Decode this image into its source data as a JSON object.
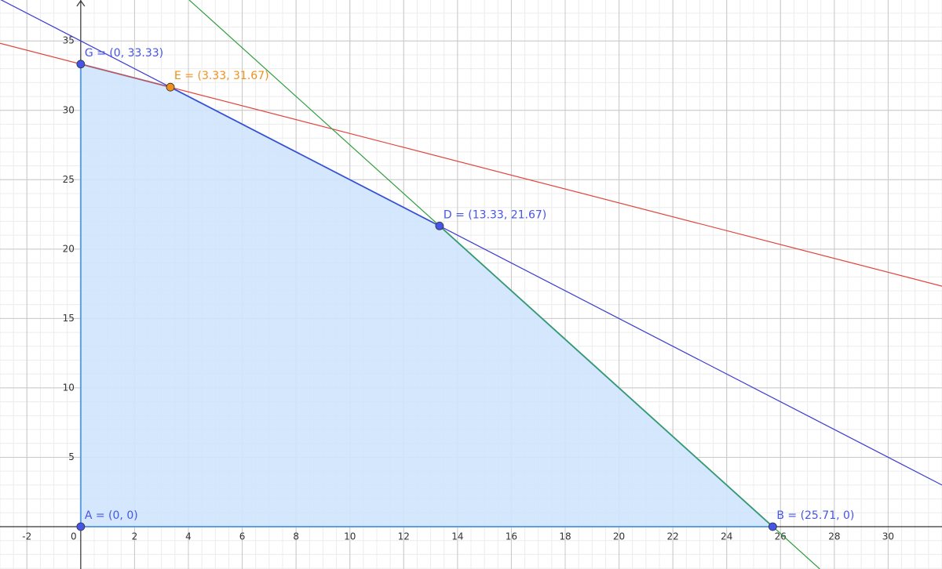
{
  "chart_data": {
    "type": "line",
    "xlim": [
      -3,
      32
    ],
    "ylim": [
      -3.05,
      37.95
    ],
    "xticks": [
      -2,
      0,
      2,
      4,
      6,
      8,
      10,
      12,
      14,
      16,
      18,
      20,
      22,
      24,
      26,
      28,
      30
    ],
    "yticks": [
      5,
      10,
      15,
      20,
      25,
      30,
      35
    ],
    "grid": true,
    "polygon": {
      "color": "#5b9fe3",
      "fill": "#cfe4fc",
      "x": [
        0,
        25.71,
        13.33,
        3.33,
        0
      ],
      "y": [
        0,
        0,
        21.67,
        31.67,
        33.33
      ]
    },
    "lines": [
      {
        "color": "#e0443c",
        "x": [
          -3,
          32
        ],
        "y": [
          34.83,
          17.33
        ]
      },
      {
        "color": "#3b3bd1",
        "x": [
          -3,
          32
        ],
        "y": [
          38,
          3
        ]
      },
      {
        "color": "#2e9e3e",
        "x": [
          4.03,
          27.46
        ],
        "y": [
          37.95,
          -3.05
        ]
      }
    ],
    "points": [
      {
        "label": "G = (0, 33.33)",
        "color": "#4655e8",
        "x": 0,
        "y": 33.33
      },
      {
        "label": "E = (3.33, 31.67)",
        "color": "#f0901a",
        "x": 3.33,
        "y": 31.67
      },
      {
        "label": "D = (13.33, 21.67)",
        "color": "#4655e8",
        "x": 13.33,
        "y": 21.67
      },
      {
        "label": "A = (0, 0)",
        "color": "#4655e8",
        "x": 0,
        "y": 0
      },
      {
        "label": "B = (25.71, 0)",
        "color": "#4655e8",
        "x": 25.71,
        "y": 0
      }
    ]
  }
}
